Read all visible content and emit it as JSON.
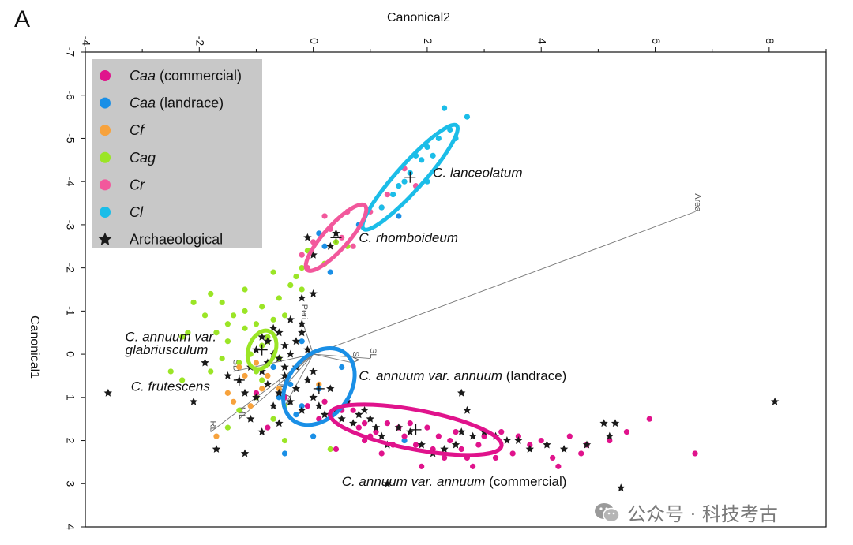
{
  "panel_label": "A",
  "watermark": {
    "text": "公众号 · 科技考古"
  },
  "chart_data": {
    "type": "scatter",
    "xlabel": "Canonical2",
    "ylabel": "Canonical1",
    "xlim": [
      -4,
      9
    ],
    "ylim": [
      -7,
      4
    ],
    "y_inverted": true,
    "x_ticks": [
      -4,
      -2,
      0,
      2,
      4,
      6,
      8
    ],
    "x_tick_labels": [
      "-4",
      "-2",
      "0",
      "2",
      "4",
      "6",
      "8"
    ],
    "y_ticks": [
      -7,
      -6,
      -5,
      -4,
      -3,
      -2,
      -1,
      0,
      1,
      2,
      3,
      4
    ],
    "y_tick_labels": [
      "-7",
      "-6",
      "-5",
      "-4",
      "-3",
      "-2",
      "-1",
      "0",
      "1",
      "2",
      "3",
      "4"
    ],
    "legend_position": "top-left",
    "series": [
      {
        "name": "Caa",
        "suffix": " (commercial)",
        "marker": "circle",
        "color": "#e0138c",
        "points": [
          [
            0.2,
            1.1
          ],
          [
            0.3,
            1.4
          ],
          [
            0.5,
            1.3
          ],
          [
            0.6,
            1.1
          ],
          [
            0.7,
            1.3
          ],
          [
            0.8,
            1.7
          ],
          [
            0.9,
            1.6
          ],
          [
            1.0,
            1.9
          ],
          [
            1.1,
            1.8
          ],
          [
            1.2,
            2.3
          ],
          [
            1.3,
            1.6
          ],
          [
            1.4,
            2.1
          ],
          [
            1.6,
            1.9
          ],
          [
            1.7,
            1.6
          ],
          [
            1.8,
            2.1
          ],
          [
            2.0,
            1.7
          ],
          [
            2.1,
            2.2
          ],
          [
            2.2,
            1.9
          ],
          [
            2.4,
            2.0
          ],
          [
            2.6,
            2.2
          ],
          [
            2.7,
            2.4
          ],
          [
            2.8,
            2.6
          ],
          [
            3.0,
            1.9
          ],
          [
            3.3,
            1.8
          ],
          [
            3.5,
            2.3
          ],
          [
            3.6,
            1.9
          ],
          [
            3.8,
            2.1
          ],
          [
            4.0,
            2.0
          ],
          [
            4.2,
            2.4
          ],
          [
            4.3,
            2.6
          ],
          [
            4.5,
            1.9
          ],
          [
            4.7,
            2.3
          ],
          [
            4.8,
            2.1
          ],
          [
            5.2,
            2.0
          ],
          [
            5.5,
            1.8
          ],
          [
            5.9,
            1.5
          ],
          [
            6.7,
            2.3
          ],
          [
            0.4,
            2.2
          ],
          [
            0.1,
            1.5
          ],
          [
            -0.1,
            1.2
          ],
          [
            -0.5,
            1.0
          ],
          [
            -0.8,
            1.7
          ],
          [
            -1.0,
            0.9
          ],
          [
            1.9,
            2.6
          ],
          [
            2.3,
            2.4
          ],
          [
            0.9,
            2.0
          ],
          [
            2.9,
            2.1
          ],
          [
            3.2,
            2.4
          ],
          [
            1.5,
            1.7
          ],
          [
            2.5,
            1.8
          ]
        ]
      },
      {
        "name": "Caa",
        "suffix": " (landrace)",
        "marker": "circle",
        "color": "#1a8fe6",
        "points": [
          [
            0.3,
            -1.9
          ],
          [
            0.2,
            -2.5
          ],
          [
            0.1,
            -2.8
          ],
          [
            -0.2,
            -0.3
          ],
          [
            -0.4,
            0.7
          ],
          [
            -0.6,
            1.0
          ],
          [
            0.5,
            0.3
          ],
          [
            -0.7,
            0.3
          ],
          [
            -0.3,
            1.4
          ],
          [
            -0.5,
            2.3
          ],
          [
            0.0,
            1.9
          ],
          [
            1.6,
            2.0
          ],
          [
            0.1,
            0.8
          ],
          [
            -0.2,
            1.2
          ],
          [
            0.8,
            -3.0
          ],
          [
            1.5,
            -3.2
          ]
        ]
      },
      {
        "name": "Cf",
        "suffix": "",
        "marker": "circle",
        "color": "#f7a23c",
        "points": [
          [
            -1.4,
            1.1
          ],
          [
            -1.7,
            1.9
          ],
          [
            -1.2,
            0.5
          ],
          [
            -1.0,
            0.2
          ],
          [
            -1.5,
            0.9
          ],
          [
            -0.9,
            0.8
          ],
          [
            -0.8,
            0.5
          ],
          [
            -0.6,
            0.8
          ],
          [
            -1.3,
            0.3
          ],
          [
            0.1,
            0.7
          ],
          [
            0.2,
            1.1
          ],
          [
            -1.1,
            1.2
          ]
        ]
      },
      {
        "name": "Cag",
        "suffix": "",
        "marker": "circle",
        "color": "#9be526",
        "points": [
          [
            -1.8,
            -1.4
          ],
          [
            -1.6,
            -1.2
          ],
          [
            -1.9,
            -0.9
          ],
          [
            -1.7,
            -0.5
          ],
          [
            -1.5,
            -0.3
          ],
          [
            -1.4,
            -0.9
          ],
          [
            -1.2,
            -0.6
          ],
          [
            -1.0,
            -0.7
          ],
          [
            -0.9,
            -1.1
          ],
          [
            -0.8,
            -0.4
          ],
          [
            -0.7,
            -0.8
          ],
          [
            -0.6,
            -1.3
          ],
          [
            -0.5,
            -0.9
          ],
          [
            -0.9,
            -0.2
          ],
          [
            -1.1,
            0.0
          ],
          [
            -1.3,
            0.2
          ],
          [
            -1.6,
            0.1
          ],
          [
            -1.8,
            0.4
          ],
          [
            -2.2,
            -0.5
          ],
          [
            -2.3,
            0.6
          ],
          [
            -2.1,
            -1.2
          ],
          [
            -1.2,
            -1.5
          ],
          [
            -0.7,
            -1.9
          ],
          [
            -0.4,
            -1.6
          ],
          [
            -0.2,
            -1.5
          ],
          [
            -0.3,
            -1.8
          ],
          [
            -0.9,
            0.6
          ],
          [
            -1.0,
            1.0
          ],
          [
            -1.3,
            1.3
          ],
          [
            -1.5,
            1.7
          ],
          [
            -0.7,
            1.5
          ],
          [
            -0.5,
            1.2
          ],
          [
            -2.5,
            0.4
          ],
          [
            -2.3,
            -0.4
          ],
          [
            -1.2,
            -1.0
          ],
          [
            -0.8,
            -0.3
          ],
          [
            0.3,
            2.2
          ],
          [
            -0.5,
            2.0
          ],
          [
            0.4,
            -2.6
          ],
          [
            0.6,
            -2.5
          ],
          [
            0.2,
            -2.1
          ],
          [
            -0.1,
            -2.4
          ],
          [
            -0.2,
            -2.0
          ],
          [
            -1.5,
            -0.7
          ],
          [
            -0.6,
            0.1
          ],
          [
            -1.0,
            0.4
          ]
        ]
      },
      {
        "name": "Cr",
        "suffix": "",
        "marker": "circle",
        "color": "#f2589c",
        "points": [
          [
            1.6,
            -4.3
          ],
          [
            1.3,
            -3.7
          ],
          [
            1.2,
            -3.4
          ],
          [
            1.0,
            -3.3
          ],
          [
            0.2,
            -3.2
          ],
          [
            0.3,
            -2.9
          ],
          [
            0.5,
            -2.7
          ],
          [
            0.7,
            -2.5
          ],
          [
            -0.2,
            -2.3
          ],
          [
            -0.1,
            -2.0
          ],
          [
            1.8,
            -3.9
          ],
          [
            0.0,
            -2.6
          ],
          [
            0.6,
            -3.3
          ]
        ]
      },
      {
        "name": "Cl",
        "suffix": "",
        "marker": "circle",
        "color": "#1bbde8",
        "points": [
          [
            2.3,
            -5.7
          ],
          [
            2.7,
            -5.5
          ],
          [
            2.4,
            -5.2
          ],
          [
            2.2,
            -5.0
          ],
          [
            2.0,
            -4.8
          ],
          [
            1.9,
            -4.5
          ],
          [
            1.7,
            -4.2
          ],
          [
            1.5,
            -3.9
          ],
          [
            1.4,
            -3.7
          ],
          [
            1.2,
            -3.4
          ],
          [
            2.0,
            -4.0
          ],
          [
            2.5,
            -5.0
          ],
          [
            1.8,
            -4.6
          ],
          [
            1.6,
            -4.0
          ],
          [
            2.1,
            -4.6
          ]
        ]
      },
      {
        "name": "Archaeological",
        "suffix": "",
        "marker": "star",
        "color": "#1a1a1a",
        "points": [
          [
            -3.6,
            0.9
          ],
          [
            -2.1,
            1.1
          ],
          [
            -1.7,
            2.2
          ],
          [
            -1.2,
            2.3
          ],
          [
            -1.9,
            0.2
          ],
          [
            -1.5,
            0.5
          ],
          [
            -1.3,
            0.6
          ],
          [
            -1.2,
            0.9
          ],
          [
            -1.1,
            0.3
          ],
          [
            -1.0,
            1.0
          ],
          [
            -0.9,
            0.4
          ],
          [
            -0.8,
            0.7
          ],
          [
            -0.7,
            1.2
          ],
          [
            -0.6,
            0.9
          ],
          [
            -0.5,
            0.5
          ],
          [
            -0.4,
            1.1
          ],
          [
            -0.3,
            0.8
          ],
          [
            -0.2,
            1.3
          ],
          [
            -0.1,
            0.6
          ],
          [
            0.0,
            1.0
          ],
          [
            0.1,
            1.2
          ],
          [
            0.2,
            1.4
          ],
          [
            0.3,
            0.8
          ],
          [
            0.4,
            1.3
          ],
          [
            0.5,
            1.5
          ],
          [
            0.6,
            1.1
          ],
          [
            0.7,
            1.6
          ],
          [
            0.8,
            1.4
          ],
          [
            0.9,
            1.3
          ],
          [
            1.0,
            1.5
          ],
          [
            1.1,
            1.7
          ],
          [
            1.2,
            1.9
          ],
          [
            1.3,
            2.1
          ],
          [
            1.5,
            1.7
          ],
          [
            1.7,
            1.8
          ],
          [
            1.9,
            2.1
          ],
          [
            2.1,
            2.3
          ],
          [
            2.3,
            2.2
          ],
          [
            2.5,
            2.1
          ],
          [
            2.6,
            1.8
          ],
          [
            2.8,
            1.9
          ],
          [
            3.0,
            1.8
          ],
          [
            3.2,
            1.9
          ],
          [
            3.4,
            2.0
          ],
          [
            3.6,
            2.0
          ],
          [
            3.8,
            2.2
          ],
          [
            4.1,
            2.1
          ],
          [
            4.4,
            2.2
          ],
          [
            4.8,
            2.1
          ],
          [
            5.1,
            1.6
          ],
          [
            5.3,
            1.6
          ],
          [
            5.2,
            1.9
          ],
          [
            8.1,
            1.1
          ],
          [
            5.4,
            3.1
          ],
          [
            2.6,
            0.9
          ],
          [
            2.7,
            1.3
          ],
          [
            1.3,
            3.0
          ],
          [
            -0.8,
            -0.3
          ],
          [
            -0.7,
            0.0
          ],
          [
            -0.5,
            -0.2
          ],
          [
            -0.6,
            -0.5
          ],
          [
            -0.4,
            -0.8
          ],
          [
            -0.2,
            -0.5
          ],
          [
            -0.3,
            0.3
          ],
          [
            -0.1,
            -0.1
          ],
          [
            0.0,
            0.4
          ],
          [
            -0.9,
            -0.4
          ],
          [
            -1.0,
            -0.1
          ],
          [
            -0.8,
            0.2
          ],
          [
            -0.7,
            -0.6
          ],
          [
            -0.6,
            0.1
          ],
          [
            -0.5,
            0.3
          ],
          [
            -0.4,
            0.0
          ],
          [
            -0.3,
            -0.3
          ],
          [
            -0.2,
            -0.7
          ],
          [
            -0.6,
            1.6
          ],
          [
            -0.9,
            1.8
          ],
          [
            -1.1,
            1.5
          ],
          [
            0.0,
            -2.3
          ],
          [
            0.0,
            -1.4
          ],
          [
            -0.2,
            -1.3
          ],
          [
            -0.1,
            -2.7
          ],
          [
            0.3,
            -2.5
          ],
          [
            0.4,
            -2.8
          ]
        ]
      }
    ],
    "group_means": [
      {
        "name": "Cl",
        "x": 1.7,
        "y": -4.1
      },
      {
        "name": "Cr",
        "x": 0.4,
        "y": -2.7
      },
      {
        "name": "Cag",
        "x": -0.9,
        "y": -0.1
      },
      {
        "name": "Cf",
        "x": -1.3,
        "y": 0.6
      },
      {
        "name": "Caa (landrace)",
        "x": 0.1,
        "y": 0.8
      },
      {
        "name": "Caa (commercial)",
        "x": 1.8,
        "y": 1.75
      }
    ],
    "confidence_ellipses": [
      {
        "group": "Cl",
        "color": "#1bbde8",
        "cx": 1.7,
        "cy": -4.1,
        "length": 2.9,
        "width": 0.55,
        "direction": [
          0.75,
          -1.1
        ]
      },
      {
        "group": "Cr",
        "color": "#f2589c",
        "cx": 0.4,
        "cy": -2.7,
        "length": 1.8,
        "width": 0.5,
        "direction": [
          0.75,
          -1.1
        ]
      },
      {
        "group": "Caa (landrace)",
        "color": "#1a8fe6",
        "cx": 0.1,
        "cy": 0.75,
        "length": 1.8,
        "width": 1.3,
        "direction": [
          0.6,
          -1.0
        ]
      },
      {
        "group": "Caa (commercial)",
        "color": "#e0138c",
        "cx": 1.8,
        "cy": 1.75,
        "length": 3.1,
        "width": 0.7,
        "direction": [
          2.0,
          0.5
        ]
      },
      {
        "group": "Cag",
        "color": "#9be526",
        "cx": -0.9,
        "cy": -0.1,
        "length": 0.9,
        "width": 0.6,
        "direction": [
          0.3,
          -1.0
        ]
      }
    ],
    "biplot_vectors": [
      {
        "label": "Area",
        "x": 6.7,
        "y": -3.3
      },
      {
        "label": "Peri",
        "x": -0.2,
        "y": -0.8
      },
      {
        "label": "SL",
        "x": 1.0,
        "y": 0.1
      },
      {
        "label": "SA",
        "x": 0.7,
        "y": 0.2
      },
      {
        "label": "ML",
        "x": -1.3,
        "y": 1.5
      },
      {
        "label": "RL",
        "x": -1.8,
        "y": 1.8
      },
      {
        "label": "SD",
        "x": -1.4,
        "y": 0.4
      },
      {
        "label": "Circ",
        "x": -0.6,
        "y": 0.9
      },
      {
        "label": "AR",
        "x": -0.5,
        "y": 1.2
      }
    ],
    "annotations": [
      {
        "text": "C. lanceolatum",
        "x": 2.1,
        "y": -4.1
      },
      {
        "text": "C. rhomboideum",
        "x": 0.8,
        "y": -2.6
      },
      {
        "text": "C. annuum var.",
        "x": -3.3,
        "y": -0.3
      },
      {
        "text": "glabriusculum",
        "x": -3.3,
        "y": 0.0
      },
      {
        "text": "C. frutescens",
        "x": -3.2,
        "y": 0.85
      },
      {
        "text": "C. annuum var. annuum",
        "suffix": " (landrace)",
        "x": 0.8,
        "y": 0.6
      },
      {
        "text": "C. annuum var. annuum",
        "suffix": " (commercial)",
        "x": 0.5,
        "y": 3.05
      }
    ]
  }
}
